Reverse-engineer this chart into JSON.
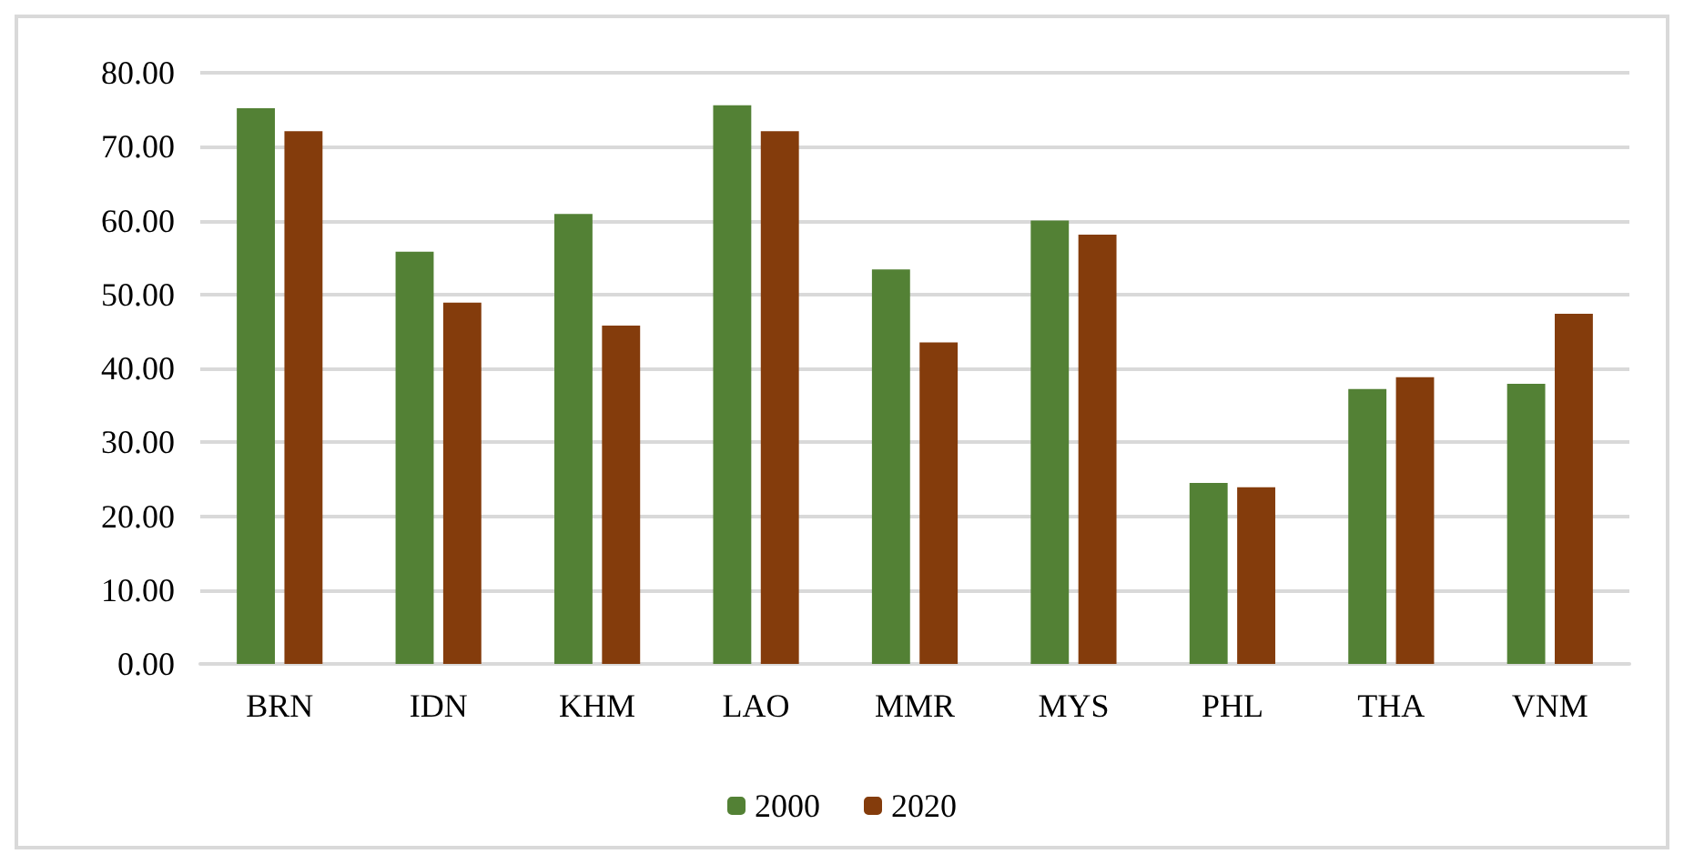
{
  "chart_data": {
    "type": "bar",
    "categories": [
      "BRN",
      "IDN",
      "KHM",
      "LAO",
      "MMR",
      "MYS",
      "PHL",
      "THA",
      "VNM"
    ],
    "series": [
      {
        "name": "2000",
        "color": "#538135",
        "values": [
          75.2,
          55.8,
          60.9,
          75.6,
          53.4,
          60.0,
          24.5,
          37.2,
          37.9
        ]
      },
      {
        "name": "2020",
        "color": "#843c0c",
        "values": [
          72.1,
          48.9,
          45.8,
          72.1,
          43.5,
          58.1,
          23.9,
          38.8,
          47.4
        ]
      }
    ],
    "ylim": [
      0,
      80
    ],
    "yticks": [
      {
        "value": 0,
        "label": "0.00"
      },
      {
        "value": 10,
        "label": "10.00"
      },
      {
        "value": 20,
        "label": "20.00"
      },
      {
        "value": 30,
        "label": "30.00"
      },
      {
        "value": 40,
        "label": "40.00"
      },
      {
        "value": 50,
        "label": "50.00"
      },
      {
        "value": 60,
        "label": "60.00"
      },
      {
        "value": 70,
        "label": "70.00"
      },
      {
        "value": 80,
        "label": "80.00"
      }
    ],
    "grid": "y",
    "legend": "bottom"
  }
}
